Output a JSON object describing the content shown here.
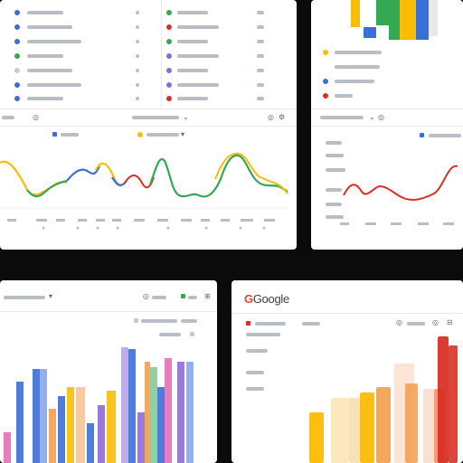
{
  "brand": {
    "logo_g": "G",
    "logo_text": "Google"
  },
  "colors": {
    "blue": "#3b6fd8",
    "green": "#34a853",
    "yellow": "#fbbc05",
    "red": "#d93025",
    "orange": "#f29e4c",
    "purple": "#8e6ad8",
    "pink": "#e46fb8"
  },
  "panels": {
    "top_left": {
      "list_rows": [
        {
          "dot_color": "#3b6fd8"
        },
        {
          "dot_color": "#3b6fd8"
        },
        {
          "dot_color": "#3b6fd8"
        },
        {
          "dot_color": "#34a853"
        },
        {
          "dot_color": "#c6cacf"
        },
        {
          "dot_color": "#3b6fd8"
        },
        {
          "dot_color": "#3b6fd8"
        }
      ],
      "list_rows_right": [
        {
          "dot_color": "#34a853"
        },
        {
          "dot_color": "#d93025"
        },
        {
          "dot_color": "#34a853"
        },
        {
          "dot_color": "#8e6ad8"
        },
        {
          "dot_color": "#8e6ad8"
        },
        {
          "dot_color": "#8e6ad8"
        },
        {
          "dot_color": "#d93025"
        }
      ],
      "legend": [
        {
          "color": "#3b6fd8"
        },
        {
          "color": "#fbbc05"
        }
      ],
      "icons": [
        "info-icon",
        "chevron-down-icon",
        "refresh-icon",
        "settings-icon"
      ]
    },
    "top_right": {
      "legend": [
        {
          "color": "#fbbc05"
        },
        {
          "color": "#3b6fd8"
        },
        {
          "color": "#d93025"
        }
      ],
      "bars": [
        {
          "color": "#fbbc05"
        },
        {
          "color": "#34a853"
        },
        {
          "color": "#3b6fd8"
        },
        {
          "color": "#34a853"
        },
        {
          "color": "#fbbc05"
        },
        {
          "color": "#3b6fd8"
        }
      ],
      "icons": [
        "info-icon",
        "chevron-down-icon"
      ]
    },
    "bottom_left": {
      "bars": [
        "#e46fb8",
        "#3b6fd8",
        "#3b6fd8",
        "#3b6fd8",
        "#f29e4c",
        "#3b6fd8",
        "#fbbc05",
        "#f29e4c",
        "#3b6fd8",
        "#8e6ad8",
        "#fbbc05",
        "#8e6ad8",
        "#3b6fd8",
        "#8e6ad8",
        "#f29e4c",
        "#34a853",
        "#3b6fd8",
        "#e46fb8",
        "#8e6ad8",
        "#3b6fd8"
      ],
      "icons": [
        "chevron-down-icon",
        "filter-icon",
        "share-icon"
      ]
    },
    "bottom_right": {
      "bars": [
        "#fbbc05",
        "#f8d27a",
        "#f2c178",
        "#fbbc05",
        "#f29e4c",
        "#f5b48a",
        "#f29e4c",
        "#f7b89a",
        "#f28b62",
        "#d93025",
        "#d93025"
      ],
      "icons": [
        "filter-icon",
        "settings-icon",
        "share-icon"
      ]
    }
  }
}
